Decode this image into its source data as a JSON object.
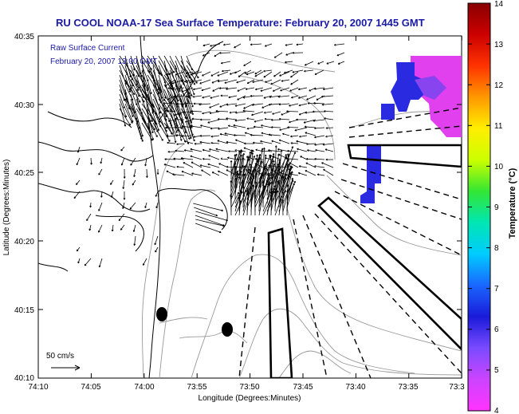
{
  "figure": {
    "title": "RU COOL  NOAA-17  Sea Surface Temperature:  February 20, 2007 1445 GMT",
    "title_color": "#1a1aa6",
    "legend_line1": "Raw Surface Current",
    "legend_line2": "February 20, 2007 13:00 GMT",
    "legend_color": "#1a1aa6",
    "scale_label": "50 cm/s"
  },
  "map": {
    "y_label": "Latitude (Degrees:Minutes)",
    "x_label": "Longitude (Degrees:Minutes)",
    "lat_ticks": [
      "40:35",
      "40:30",
      "40:25",
      "40:20",
      "40:15",
      "40:10"
    ],
    "lon_ticks": [
      "74:10",
      "74:05",
      "74:00",
      "73:55",
      "73:50",
      "73:45",
      "73:40",
      "73:35",
      "73:3"
    ]
  },
  "colorbar": {
    "label": "Temperature (°C)",
    "ticks": [
      "14",
      "13",
      "12",
      "11",
      "10",
      "9",
      "8",
      "7",
      "6",
      "5",
      "4"
    ],
    "min": 4,
    "max": 14,
    "colors": [
      "#ff33ff",
      "#cc44ff",
      "#7a4bff",
      "#1a1ad9",
      "#1a66ff",
      "#00ccff",
      "#00e6b3",
      "#33e633",
      "#ccff00",
      "#ffee00",
      "#ff9900",
      "#ff3300",
      "#cc0000",
      "#880000"
    ]
  },
  "sst_patch_colors": {
    "warm_magenta": "#e040ee",
    "blue": "#2a2ae0",
    "violet": "#8844ee"
  }
}
